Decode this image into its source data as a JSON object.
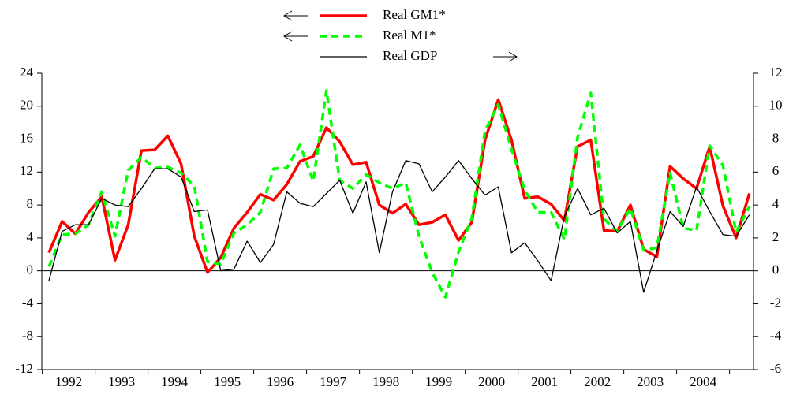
{
  "chart_data": {
    "type": "line",
    "categories": [
      null,
      "1992",
      null,
      null,
      null,
      "1993",
      null,
      null,
      null,
      "1994",
      null,
      null,
      null,
      "1995",
      null,
      null,
      null,
      "1996",
      null,
      null,
      null,
      "1997",
      null,
      null,
      null,
      "1998",
      null,
      null,
      null,
      "1999",
      null,
      null,
      null,
      "2000",
      null,
      null,
      null,
      "2001",
      null,
      null,
      null,
      "2002",
      null,
      null,
      null,
      "2003",
      null,
      null,
      null,
      "2004",
      null,
      null,
      null,
      null
    ],
    "series": [
      {
        "name": "Real GM1*",
        "color": "#ff0000",
        "axis": "y",
        "values": [
          2.2,
          6.0,
          4.5,
          7.1,
          9.0,
          1.3,
          5.6,
          14.6,
          14.7,
          16.4,
          13.0,
          4.2,
          -0.2,
          1.6,
          5.2,
          7.1,
          9.3,
          8.6,
          10.5,
          13.3,
          13.9,
          17.4,
          15.7,
          12.9,
          13.2,
          8.0,
          7.0,
          8.1,
          5.6,
          5.9,
          6.8,
          3.7,
          5.9,
          15.9,
          20.8,
          15.9,
          8.8,
          9.0,
          8.1,
          6.1,
          15.1,
          15.9,
          4.9,
          4.8,
          8.0,
          2.6,
          1.7,
          12.7,
          11.2,
          10.0,
          15.1,
          7.9,
          4.0,
          9.4
        ]
      },
      {
        "name": "Real M1*",
        "color": "#00ff00",
        "axis": "y",
        "dashed": true,
        "values": [
          0.5,
          4.4,
          4.5,
          5.6,
          9.6,
          4.2,
          12.2,
          13.8,
          12.5,
          12.6,
          11.9,
          10.3,
          1.1,
          0.8,
          4.6,
          5.6,
          7.1,
          12.4,
          12.5,
          15.3,
          10.9,
          21.9,
          11.0,
          10.0,
          11.7,
          10.7,
          10.0,
          10.7,
          4.2,
          -0.2,
          -3.2,
          2.3,
          6.4,
          17.0,
          20.2,
          14.8,
          9.8,
          7.1,
          7.1,
          3.8,
          16.2,
          21.6,
          6.3,
          4.8,
          7.6,
          2.5,
          2.8,
          11.9,
          5.2,
          4.9,
          15.2,
          12.8,
          4.7,
          7.8
        ]
      },
      {
        "name": "Real GDP",
        "color": "#000000",
        "axis": "y2",
        "values": [
          -0.6,
          2.4,
          2.8,
          2.8,
          4.4,
          4.0,
          3.9,
          5.0,
          6.2,
          6.2,
          5.7,
          3.6,
          3.7,
          0.0,
          0.1,
          1.8,
          0.5,
          1.6,
          4.8,
          4.1,
          3.9,
          4.7,
          5.5,
          3.5,
          5.4,
          1.1,
          4.8,
          6.7,
          6.5,
          4.8,
          5.7,
          6.7,
          5.6,
          4.6,
          5.1,
          1.1,
          1.7,
          0.6,
          -0.6,
          3.3,
          5.0,
          3.4,
          3.8,
          2.3,
          3.0,
          -1.3,
          1.2,
          3.6,
          2.7,
          5.1,
          3.6,
          2.2,
          2.1,
          3.4
        ]
      }
    ],
    "ylim": [
      -12,
      24
    ],
    "yticks": [
      -12,
      -8,
      -4,
      0,
      4,
      8,
      12,
      16,
      20,
      24
    ],
    "y2lim": [
      -6,
      12
    ],
    "y2ticks": [
      -6,
      -4,
      -2,
      0,
      2,
      4,
      6,
      8,
      10,
      12
    ]
  }
}
